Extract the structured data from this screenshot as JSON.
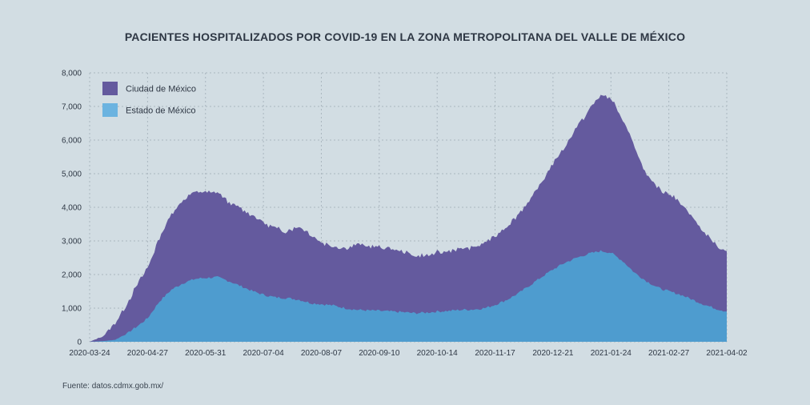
{
  "colors": {
    "background": "#d2dde3",
    "ciudad": "#645a9e",
    "estado": "#4e9ccf",
    "legend_estado": "#6bb3e0",
    "grid": "#aab6bf"
  },
  "chart_data": {
    "type": "area",
    "stacked": true,
    "title": "PACIENTES HOSPITALIZADOS POR COVID-19 EN LA ZONA METROPOLITANA DEL VALLE DE MÉXICO",
    "source": "Fuente: datos.cdmx.gob.mx/",
    "x_start": "2020-03-24",
    "x_end": "2021-04-02",
    "x_ticks": [
      "2020-03-24",
      "2020-04-27",
      "2020-05-31",
      "2020-07-04",
      "2020-08-07",
      "2020-09-10",
      "2020-10-14",
      "2020-11-17",
      "2020-12-21",
      "2021-01-24",
      "2021-02-27",
      "2021-04-02"
    ],
    "y_ticks": [
      0,
      1000,
      2000,
      3000,
      4000,
      5000,
      6000,
      7000,
      8000
    ],
    "y_tick_labels": [
      "0",
      "1,000",
      "2,000",
      "3,000",
      "4,000",
      "5,000",
      "6,000",
      "7,000",
      "8,000"
    ],
    "ylim": [
      0,
      8000
    ],
    "grid": true,
    "legend_placement": "top-left",
    "series": [
      {
        "name": "Ciudad de México",
        "points": [
          [
            "2020-03-24",
            0
          ],
          [
            "2020-04-01",
            150
          ],
          [
            "2020-04-08",
            500
          ],
          [
            "2020-04-15",
            880
          ],
          [
            "2020-04-22",
            1300
          ],
          [
            "2020-04-27",
            1500
          ],
          [
            "2020-05-04",
            1900
          ],
          [
            "2020-05-11",
            2250
          ],
          [
            "2020-05-18",
            2500
          ],
          [
            "2020-05-25",
            2580
          ],
          [
            "2020-05-31",
            2560
          ],
          [
            "2020-06-07",
            2500
          ],
          [
            "2020-06-14",
            2350
          ],
          [
            "2020-06-21",
            2300
          ],
          [
            "2020-06-28",
            2250
          ],
          [
            "2020-07-04",
            2150
          ],
          [
            "2020-07-11",
            2050
          ],
          [
            "2020-07-18",
            2000
          ],
          [
            "2020-07-25",
            2200
          ],
          [
            "2020-08-01",
            2050
          ],
          [
            "2020-08-07",
            1850
          ],
          [
            "2020-08-14",
            1750
          ],
          [
            "2020-08-21",
            1800
          ],
          [
            "2020-08-28",
            1950
          ],
          [
            "2020-09-04",
            1900
          ],
          [
            "2020-09-10",
            1880
          ],
          [
            "2020-09-17",
            1850
          ],
          [
            "2020-09-24",
            1800
          ],
          [
            "2020-10-01",
            1700
          ],
          [
            "2020-10-08",
            1700
          ],
          [
            "2020-10-14",
            1750
          ],
          [
            "2020-10-21",
            1780
          ],
          [
            "2020-10-28",
            1820
          ],
          [
            "2020-11-04",
            1850
          ],
          [
            "2020-11-11",
            1950
          ],
          [
            "2020-11-17",
            2050
          ],
          [
            "2020-11-24",
            2200
          ],
          [
            "2020-12-01",
            2350
          ],
          [
            "2020-12-08",
            2550
          ],
          [
            "2020-12-15",
            2850
          ],
          [
            "2020-12-21",
            3150
          ],
          [
            "2020-12-28",
            3450
          ],
          [
            "2021-01-04",
            3900
          ],
          [
            "2021-01-11",
            4250
          ],
          [
            "2021-01-18",
            4650
          ],
          [
            "2021-01-24",
            4600
          ],
          [
            "2021-01-31",
            4200
          ],
          [
            "2021-02-07",
            3750
          ],
          [
            "2021-02-14",
            3150
          ],
          [
            "2021-02-21",
            2950
          ],
          [
            "2021-02-27",
            2900
          ],
          [
            "2021-03-06",
            2750
          ],
          [
            "2021-03-13",
            2450
          ],
          [
            "2021-03-20",
            2150
          ],
          [
            "2021-03-27",
            1900
          ],
          [
            "2021-04-02",
            1800
          ]
        ]
      },
      {
        "name": "Estado de México",
        "points": [
          [
            "2020-03-24",
            0
          ],
          [
            "2020-04-01",
            20
          ],
          [
            "2020-04-08",
            60
          ],
          [
            "2020-04-15",
            250
          ],
          [
            "2020-04-22",
            500
          ],
          [
            "2020-04-27",
            700
          ],
          [
            "2020-05-04",
            1200
          ],
          [
            "2020-05-11",
            1550
          ],
          [
            "2020-05-18",
            1750
          ],
          [
            "2020-05-25",
            1870
          ],
          [
            "2020-05-31",
            1900
          ],
          [
            "2020-06-07",
            1920
          ],
          [
            "2020-06-14",
            1800
          ],
          [
            "2020-06-21",
            1650
          ],
          [
            "2020-06-28",
            1500
          ],
          [
            "2020-07-04",
            1400
          ],
          [
            "2020-07-11",
            1320
          ],
          [
            "2020-07-18",
            1300
          ],
          [
            "2020-07-25",
            1250
          ],
          [
            "2020-08-01",
            1150
          ],
          [
            "2020-08-07",
            1120
          ],
          [
            "2020-08-14",
            1080
          ],
          [
            "2020-08-21",
            1000
          ],
          [
            "2020-08-28",
            950
          ],
          [
            "2020-09-04",
            930
          ],
          [
            "2020-09-10",
            920
          ],
          [
            "2020-09-17",
            900
          ],
          [
            "2020-09-24",
            880
          ],
          [
            "2020-10-01",
            850
          ],
          [
            "2020-10-08",
            870
          ],
          [
            "2020-10-14",
            900
          ],
          [
            "2020-10-21",
            920
          ],
          [
            "2020-10-28",
            950
          ],
          [
            "2020-11-04",
            960
          ],
          [
            "2020-11-11",
            1000
          ],
          [
            "2020-11-17",
            1100
          ],
          [
            "2020-11-24",
            1250
          ],
          [
            "2020-12-01",
            1450
          ],
          [
            "2020-12-08",
            1700
          ],
          [
            "2020-12-15",
            1950
          ],
          [
            "2020-12-21",
            2150
          ],
          [
            "2020-12-28",
            2350
          ],
          [
            "2021-01-04",
            2500
          ],
          [
            "2021-01-11",
            2620
          ],
          [
            "2021-01-18",
            2700
          ],
          [
            "2021-01-24",
            2650
          ],
          [
            "2021-01-31",
            2400
          ],
          [
            "2021-02-07",
            2050
          ],
          [
            "2021-02-14",
            1800
          ],
          [
            "2021-02-21",
            1600
          ],
          [
            "2021-02-27",
            1500
          ],
          [
            "2021-03-06",
            1400
          ],
          [
            "2021-03-13",
            1250
          ],
          [
            "2021-03-20",
            1100
          ],
          [
            "2021-03-27",
            980
          ],
          [
            "2021-04-02",
            900
          ]
        ]
      }
    ]
  }
}
